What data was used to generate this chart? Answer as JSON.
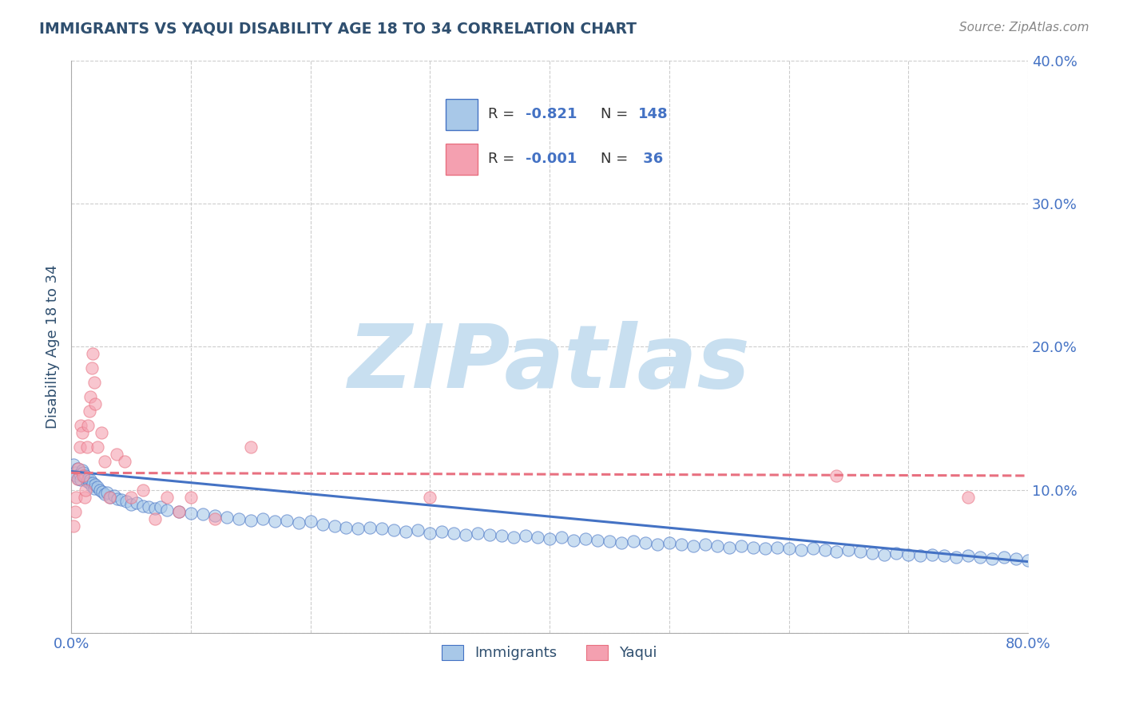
{
  "title": "IMMIGRANTS VS YAQUI DISABILITY AGE 18 TO 34 CORRELATION CHART",
  "source_text": "Source: ZipAtlas.com",
  "ylabel": "Disability Age 18 to 34",
  "xlim": [
    0.0,
    0.8
  ],
  "ylim": [
    0.0,
    0.4
  ],
  "xticks": [
    0.0,
    0.1,
    0.2,
    0.3,
    0.4,
    0.5,
    0.6,
    0.7,
    0.8
  ],
  "yticks": [
    0.0,
    0.1,
    0.2,
    0.3,
    0.4
  ],
  "blue_color": "#A8C8E8",
  "pink_color": "#F4A0B0",
  "blue_line_color": "#4472C4",
  "pink_line_color": "#E87080",
  "title_color": "#2F4F6F",
  "source_color": "#888888",
  "legend_color": "#4472C4",
  "watermark_color": "#C8DFF0",
  "watermark_text": "ZIPatlas",
  "background_color": "#FFFFFF",
  "grid_color": "#CCCCCC",
  "imm_trend_x0": 0.0,
  "imm_trend_y0": 0.113,
  "imm_trend_x1": 0.8,
  "imm_trend_y1": 0.05,
  "yaq_trend_x0": 0.0,
  "yaq_trend_y0": 0.112,
  "yaq_trend_x1": 0.8,
  "yaq_trend_y1": 0.11,
  "immigrants_x": [
    0.002,
    0.003,
    0.004,
    0.005,
    0.006,
    0.007,
    0.008,
    0.009,
    0.01,
    0.011,
    0.012,
    0.013,
    0.014,
    0.015,
    0.016,
    0.017,
    0.018,
    0.019,
    0.02,
    0.022,
    0.024,
    0.026,
    0.028,
    0.03,
    0.033,
    0.036,
    0.039,
    0.042,
    0.046,
    0.05,
    0.055,
    0.06,
    0.065,
    0.07,
    0.075,
    0.08,
    0.09,
    0.1,
    0.11,
    0.12,
    0.13,
    0.14,
    0.15,
    0.16,
    0.17,
    0.18,
    0.19,
    0.2,
    0.21,
    0.22,
    0.23,
    0.24,
    0.25,
    0.26,
    0.27,
    0.28,
    0.29,
    0.3,
    0.31,
    0.32,
    0.33,
    0.34,
    0.35,
    0.36,
    0.37,
    0.38,
    0.39,
    0.4,
    0.41,
    0.42,
    0.43,
    0.44,
    0.45,
    0.46,
    0.47,
    0.48,
    0.49,
    0.5,
    0.51,
    0.52,
    0.53,
    0.54,
    0.55,
    0.56,
    0.57,
    0.58,
    0.59,
    0.6,
    0.61,
    0.62,
    0.63,
    0.64,
    0.65,
    0.66,
    0.67,
    0.68,
    0.69,
    0.7,
    0.71,
    0.72,
    0.73,
    0.74,
    0.75,
    0.76,
    0.77,
    0.78,
    0.79,
    0.8
  ],
  "immigrants_y": [
    0.118,
    0.112,
    0.11,
    0.115,
    0.108,
    0.111,
    0.107,
    0.114,
    0.112,
    0.109,
    0.11,
    0.106,
    0.108,
    0.105,
    0.107,
    0.103,
    0.105,
    0.101,
    0.104,
    0.102,
    0.1,
    0.099,
    0.097,
    0.098,
    0.095,
    0.096,
    0.094,
    0.093,
    0.092,
    0.09,
    0.091,
    0.089,
    0.088,
    0.087,
    0.088,
    0.086,
    0.085,
    0.084,
    0.083,
    0.082,
    0.081,
    0.08,
    0.079,
    0.08,
    0.078,
    0.079,
    0.077,
    0.078,
    0.076,
    0.075,
    0.074,
    0.073,
    0.074,
    0.073,
    0.072,
    0.071,
    0.072,
    0.07,
    0.071,
    0.07,
    0.069,
    0.07,
    0.069,
    0.068,
    0.067,
    0.068,
    0.067,
    0.066,
    0.067,
    0.065,
    0.066,
    0.065,
    0.064,
    0.063,
    0.064,
    0.063,
    0.062,
    0.063,
    0.062,
    0.061,
    0.062,
    0.061,
    0.06,
    0.061,
    0.06,
    0.059,
    0.06,
    0.059,
    0.058,
    0.059,
    0.058,
    0.057,
    0.058,
    0.057,
    0.056,
    0.055,
    0.056,
    0.055,
    0.054,
    0.055,
    0.054,
    0.053,
    0.054,
    0.053,
    0.052,
    0.053,
    0.052,
    0.051
  ],
  "yaqui_x": [
    0.002,
    0.003,
    0.004,
    0.005,
    0.006,
    0.007,
    0.008,
    0.009,
    0.01,
    0.011,
    0.012,
    0.013,
    0.014,
    0.015,
    0.016,
    0.017,
    0.018,
    0.019,
    0.02,
    0.022,
    0.025,
    0.028,
    0.032,
    0.038,
    0.045,
    0.05,
    0.06,
    0.07,
    0.08,
    0.09,
    0.1,
    0.12,
    0.15,
    0.3,
    0.64,
    0.75
  ],
  "yaqui_y": [
    0.075,
    0.085,
    0.095,
    0.108,
    0.115,
    0.13,
    0.145,
    0.14,
    0.11,
    0.095,
    0.1,
    0.13,
    0.145,
    0.155,
    0.165,
    0.185,
    0.195,
    0.175,
    0.16,
    0.13,
    0.14,
    0.12,
    0.095,
    0.125,
    0.12,
    0.095,
    0.1,
    0.08,
    0.095,
    0.085,
    0.095,
    0.08,
    0.13,
    0.095,
    0.11,
    0.095
  ]
}
